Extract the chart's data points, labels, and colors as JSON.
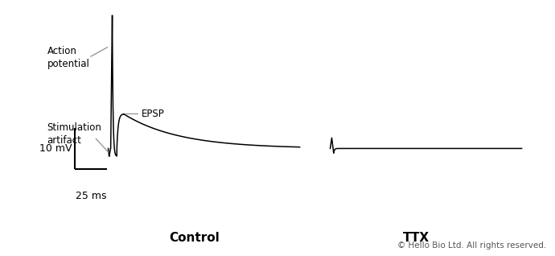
{
  "bg_color": "#ffffff",
  "line_color": "#000000",
  "annotation_color": "#999999",
  "control_label": "Control",
  "ttx_label": "TTX",
  "scale_mv": "10 mV",
  "scale_ms": "25 ms",
  "action_potential_label": "Action\npotential",
  "stimulation_label": "Stimulation\nartifact",
  "epsp_label": "EPSP",
  "copyright": "© Hello Bio Ltd. All rights reserved."
}
